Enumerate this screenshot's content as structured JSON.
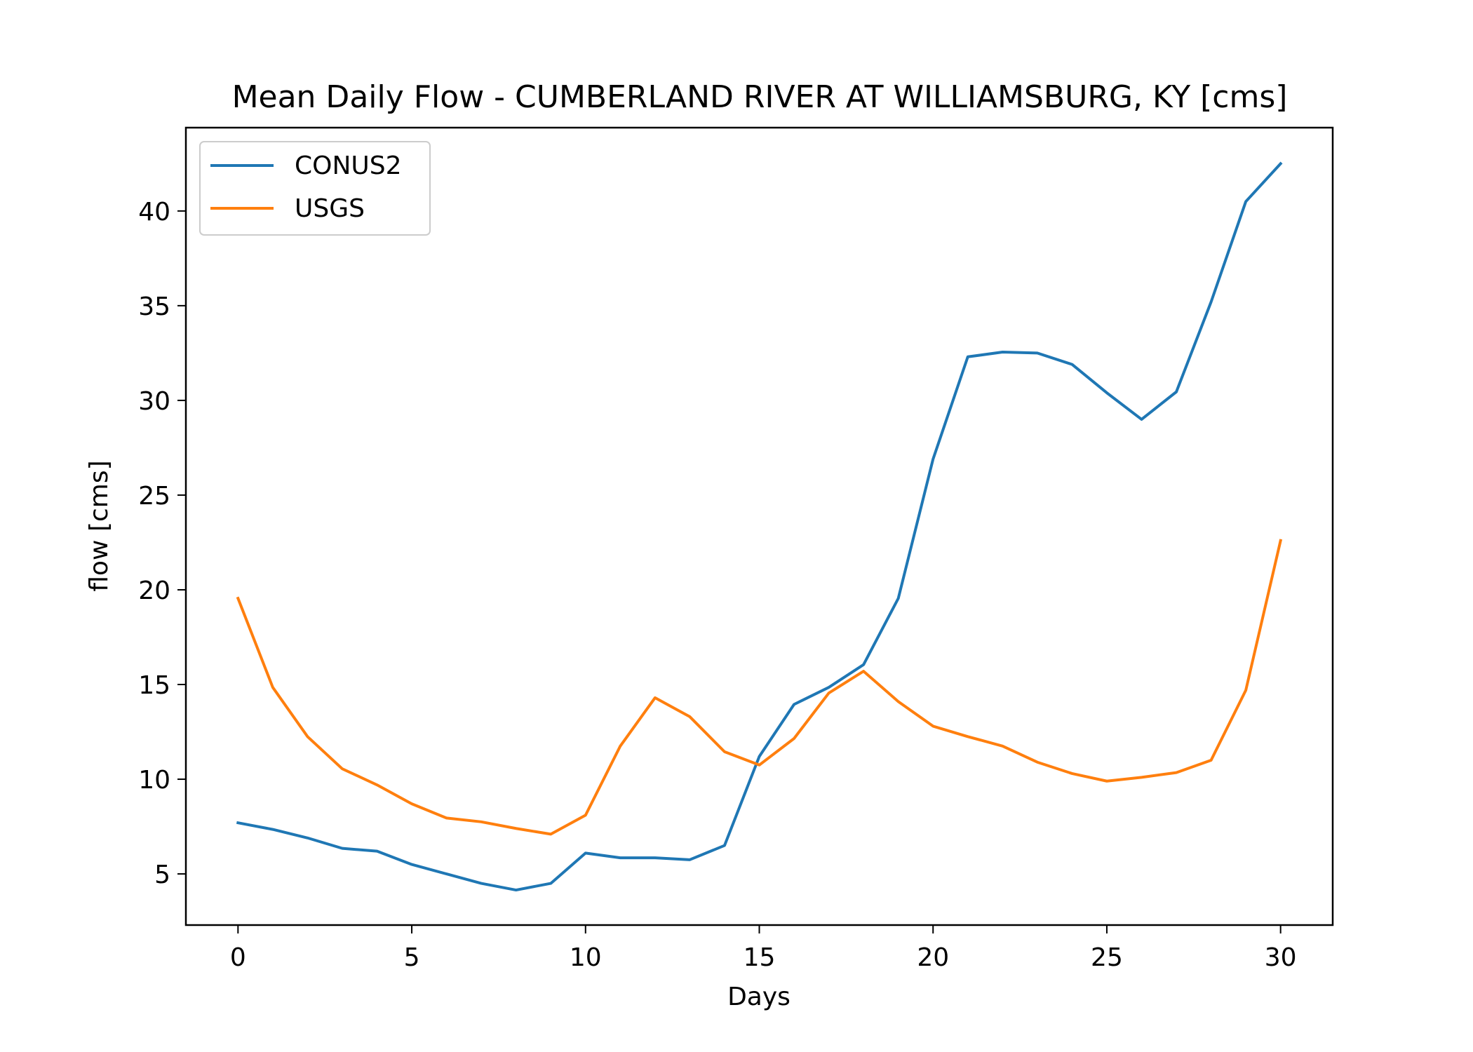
{
  "chart_data": {
    "type": "line",
    "title": "Mean Daily Flow - CUMBERLAND RIVER AT WILLIAMSBURG, KY [cms]",
    "xlabel": "Days",
    "ylabel": "flow [cms]",
    "xlim": [
      -1.5,
      31.5
    ],
    "ylim": [
      2.3,
      44.4
    ],
    "xticks": [
      0,
      5,
      10,
      15,
      20,
      25,
      30
    ],
    "yticks": [
      5,
      10,
      15,
      20,
      25,
      30,
      35,
      40
    ],
    "grid": false,
    "legend_position": "upper-left",
    "x": [
      0,
      1,
      2,
      3,
      4,
      5,
      6,
      7,
      8,
      9,
      10,
      11,
      12,
      13,
      14,
      15,
      16,
      17,
      18,
      19,
      20,
      21,
      22,
      23,
      24,
      25,
      26,
      27,
      28,
      29,
      30
    ],
    "series": [
      {
        "name": "CONUS2",
        "color": "#1f77b4",
        "values": [
          7.7,
          7.35,
          6.9,
          6.35,
          6.2,
          5.5,
          5.0,
          4.5,
          4.15,
          4.5,
          6.1,
          5.85,
          5.85,
          5.75,
          6.5,
          11.2,
          13.95,
          14.85,
          16.05,
          19.55,
          26.9,
          32.3,
          32.55,
          32.5,
          31.9,
          30.4,
          29.0,
          30.45,
          35.2,
          40.5,
          42.5
        ]
      },
      {
        "name": "USGS",
        "color": "#ff7f0e",
        "values": [
          19.55,
          14.85,
          12.25,
          10.55,
          9.7,
          8.7,
          7.95,
          7.75,
          7.4,
          7.1,
          8.1,
          11.75,
          14.3,
          13.3,
          11.45,
          10.75,
          12.15,
          14.55,
          15.7,
          14.1,
          12.8,
          12.25,
          11.75,
          10.9,
          10.3,
          9.9,
          10.1,
          10.35,
          11.0,
          14.7,
          22.6
        ]
      }
    ]
  }
}
